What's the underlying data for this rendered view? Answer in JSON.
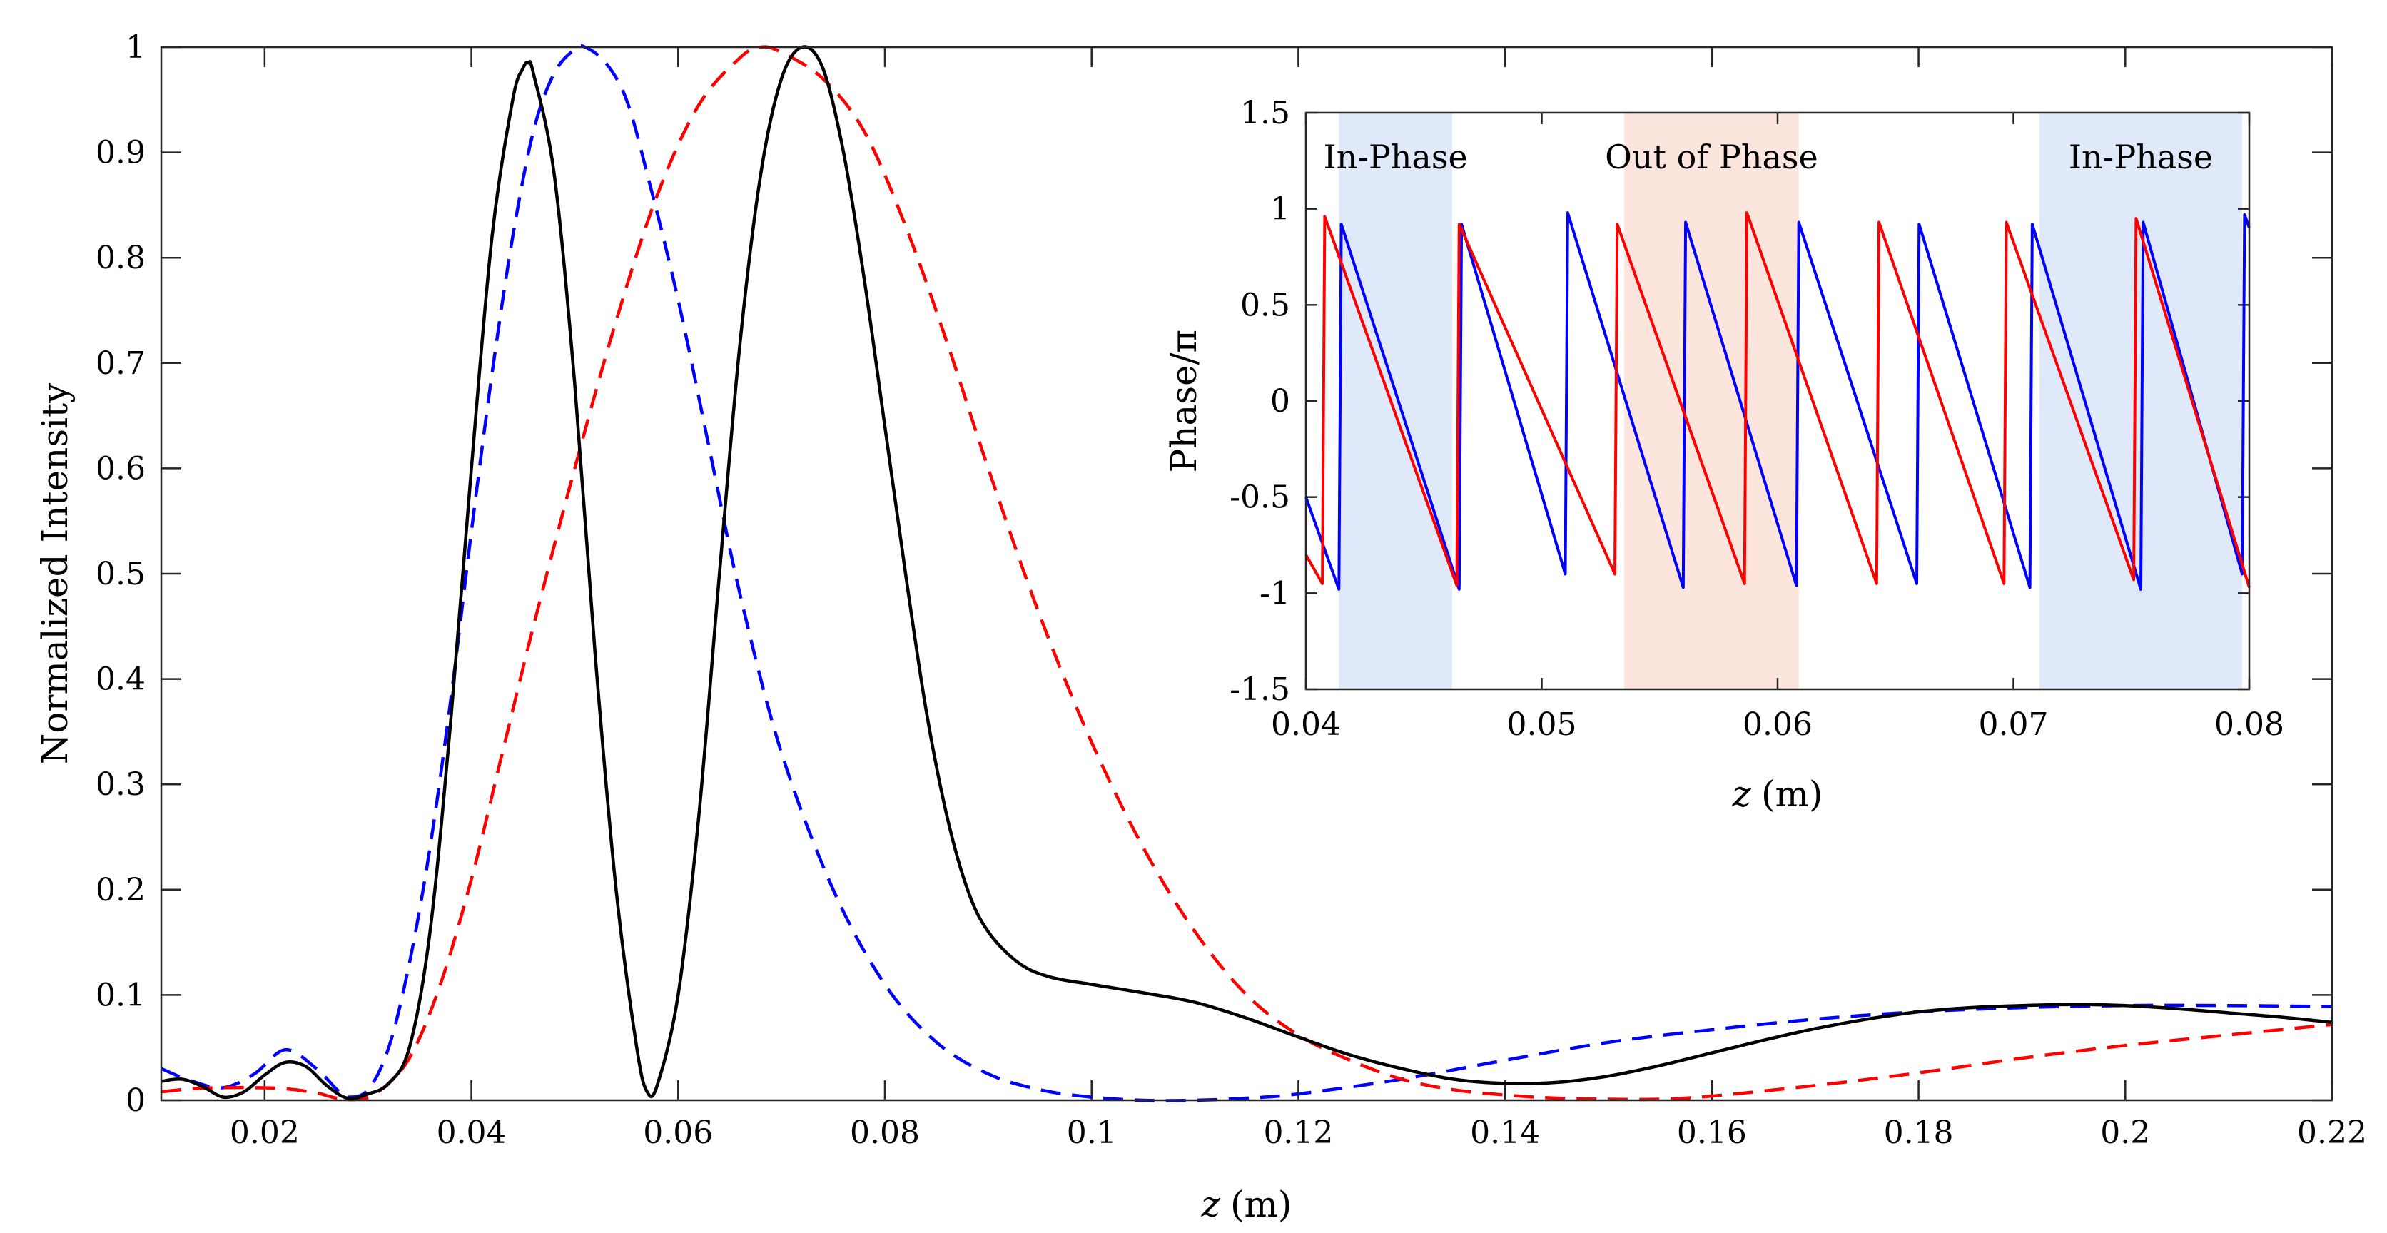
{
  "chart_data": [
    {
      "type": "line",
      "title": "",
      "xlabel_var": "z",
      "xlabel_unit": "(m)",
      "ylabel": "Normalized Intensity",
      "xlim": [
        0.01,
        0.22
      ],
      "ylim": [
        0,
        1
      ],
      "xticks": [
        0.02,
        0.04,
        0.06,
        0.08,
        0.1,
        0.12,
        0.14,
        0.16,
        0.18,
        0.2,
        0.22
      ],
      "xtick_labels": [
        "0.02",
        "0.04",
        "0.06",
        "0.08",
        "0.1",
        "0.12",
        "0.14",
        "0.16",
        "0.18",
        "0.2",
        "0.22"
      ],
      "yticks": [
        0,
        0.1,
        0.2,
        0.3,
        0.4,
        0.5,
        0.6,
        0.7,
        0.8,
        0.9,
        1
      ],
      "ytick_labels": [
        "0",
        "0.1",
        "0.2",
        "0.3",
        "0.4",
        "0.5",
        "0.6",
        "0.7",
        "0.8",
        "0.9",
        "1"
      ],
      "series": [
        {
          "name": "blue-dashed",
          "color": "#0000ff",
          "style": "dashed",
          "points": [
            [
              0.01,
              0.03
            ],
            [
              0.013,
              0.018
            ],
            [
              0.016,
              0.012
            ],
            [
              0.019,
              0.025
            ],
            [
              0.022,
              0.048
            ],
            [
              0.025,
              0.03
            ],
            [
              0.027,
              0.01
            ],
            [
              0.028,
              0.003
            ],
            [
              0.03,
              0.01
            ],
            [
              0.032,
              0.05
            ],
            [
              0.034,
              0.13
            ],
            [
              0.036,
              0.24
            ],
            [
              0.038,
              0.38
            ],
            [
              0.04,
              0.54
            ],
            [
              0.042,
              0.69
            ],
            [
              0.044,
              0.82
            ],
            [
              0.046,
              0.92
            ],
            [
              0.048,
              0.975
            ],
            [
              0.05,
              0.998
            ],
            [
              0.051,
              1.0
            ],
            [
              0.053,
              0.985
            ],
            [
              0.055,
              0.95
            ],
            [
              0.057,
              0.88
            ],
            [
              0.06,
              0.76
            ],
            [
              0.063,
              0.62
            ],
            [
              0.066,
              0.48
            ],
            [
              0.07,
              0.33
            ],
            [
              0.075,
              0.2
            ],
            [
              0.08,
              0.11
            ],
            [
              0.085,
              0.055
            ],
            [
              0.09,
              0.025
            ],
            [
              0.095,
              0.01
            ],
            [
              0.1,
              0.003
            ],
            [
              0.105,
              0.0
            ],
            [
              0.11,
              0.0
            ],
            [
              0.115,
              0.002
            ],
            [
              0.12,
              0.006
            ],
            [
              0.13,
              0.02
            ],
            [
              0.14,
              0.038
            ],
            [
              0.15,
              0.055
            ],
            [
              0.16,
              0.067
            ],
            [
              0.17,
              0.077
            ],
            [
              0.18,
              0.084
            ],
            [
              0.19,
              0.088
            ],
            [
              0.2,
              0.09
            ],
            [
              0.21,
              0.09
            ],
            [
              0.22,
              0.089
            ]
          ]
        },
        {
          "name": "red-dashed",
          "color": "#ff0000",
          "style": "dashed",
          "points": [
            [
              0.01,
              0.008
            ],
            [
              0.013,
              0.011
            ],
            [
              0.016,
              0.012
            ],
            [
              0.019,
              0.012
            ],
            [
              0.022,
              0.011
            ],
            [
              0.025,
              0.007
            ],
            [
              0.027,
              0.002
            ],
            [
              0.029,
              0.001
            ],
            [
              0.031,
              0.008
            ],
            [
              0.034,
              0.04
            ],
            [
              0.037,
              0.11
            ],
            [
              0.04,
              0.21
            ],
            [
              0.043,
              0.33
            ],
            [
              0.046,
              0.45
            ],
            [
              0.05,
              0.6
            ],
            [
              0.054,
              0.74
            ],
            [
              0.058,
              0.86
            ],
            [
              0.062,
              0.945
            ],
            [
              0.066,
              0.99
            ],
            [
              0.068,
              1.0
            ],
            [
              0.07,
              0.995
            ],
            [
              0.074,
              0.97
            ],
            [
              0.078,
              0.92
            ],
            [
              0.082,
              0.83
            ],
            [
              0.086,
              0.72
            ],
            [
              0.09,
              0.6
            ],
            [
              0.095,
              0.46
            ],
            [
              0.1,
              0.34
            ],
            [
              0.105,
              0.24
            ],
            [
              0.11,
              0.16
            ],
            [
              0.115,
              0.1
            ],
            [
              0.12,
              0.062
            ],
            [
              0.125,
              0.038
            ],
            [
              0.13,
              0.02
            ],
            [
              0.135,
              0.01
            ],
            [
              0.14,
              0.005
            ],
            [
              0.145,
              0.002
            ],
            [
              0.15,
              0.001
            ],
            [
              0.155,
              0.001
            ],
            [
              0.16,
              0.004
            ],
            [
              0.17,
              0.014
            ],
            [
              0.18,
              0.026
            ],
            [
              0.19,
              0.04
            ],
            [
              0.2,
              0.052
            ],
            [
              0.21,
              0.062
            ],
            [
              0.22,
              0.072
            ]
          ]
        },
        {
          "name": "black-solid",
          "color": "#000000",
          "style": "solid",
          "points": [
            [
              0.01,
              0.018
            ],
            [
              0.012,
              0.02
            ],
            [
              0.014,
              0.013
            ],
            [
              0.016,
              0.003
            ],
            [
              0.018,
              0.008
            ],
            [
              0.02,
              0.024
            ],
            [
              0.022,
              0.036
            ],
            [
              0.024,
              0.032
            ],
            [
              0.026,
              0.014
            ],
            [
              0.028,
              0.002
            ],
            [
              0.03,
              0.006
            ],
            [
              0.032,
              0.016
            ],
            [
              0.034,
              0.05
            ],
            [
              0.036,
              0.16
            ],
            [
              0.038,
              0.36
            ],
            [
              0.04,
              0.6
            ],
            [
              0.042,
              0.82
            ],
            [
              0.044,
              0.95
            ],
            [
              0.045,
              0.98
            ],
            [
              0.0455,
              0.985
            ],
            [
              0.046,
              0.975
            ],
            [
              0.048,
              0.88
            ],
            [
              0.05,
              0.68
            ],
            [
              0.052,
              0.42
            ],
            [
              0.054,
              0.2
            ],
            [
              0.056,
              0.05
            ],
            [
              0.057,
              0.008
            ],
            [
              0.058,
              0.015
            ],
            [
              0.06,
              0.1
            ],
            [
              0.062,
              0.27
            ],
            [
              0.064,
              0.5
            ],
            [
              0.066,
              0.72
            ],
            [
              0.068,
              0.88
            ],
            [
              0.07,
              0.97
            ],
            [
              0.072,
              1.0
            ],
            [
              0.074,
              0.98
            ],
            [
              0.076,
              0.9
            ],
            [
              0.078,
              0.78
            ],
            [
              0.08,
              0.64
            ],
            [
              0.082,
              0.5
            ],
            [
              0.084,
              0.37
            ],
            [
              0.086,
              0.27
            ],
            [
              0.088,
              0.2
            ],
            [
              0.09,
              0.16
            ],
            [
              0.093,
              0.13
            ],
            [
              0.096,
              0.117
            ],
            [
              0.1,
              0.11
            ],
            [
              0.105,
              0.102
            ],
            [
              0.11,
              0.093
            ],
            [
              0.115,
              0.078
            ],
            [
              0.12,
              0.06
            ],
            [
              0.125,
              0.043
            ],
            [
              0.13,
              0.03
            ],
            [
              0.135,
              0.02
            ],
            [
              0.14,
              0.016
            ],
            [
              0.145,
              0.017
            ],
            [
              0.15,
              0.023
            ],
            [
              0.155,
              0.033
            ],
            [
              0.16,
              0.045
            ],
            [
              0.165,
              0.057
            ],
            [
              0.17,
              0.068
            ],
            [
              0.175,
              0.077
            ],
            [
              0.18,
              0.084
            ],
            [
              0.185,
              0.088
            ],
            [
              0.19,
              0.09
            ],
            [
              0.195,
              0.091
            ],
            [
              0.2,
              0.09
            ],
            [
              0.205,
              0.087
            ],
            [
              0.21,
              0.083
            ],
            [
              0.215,
              0.079
            ],
            [
              0.22,
              0.074
            ]
          ]
        }
      ]
    },
    {
      "type": "line",
      "title": "",
      "xlabel_var": "z",
      "xlabel_unit": "(m)",
      "ylabel": "Phase/π",
      "xlim": [
        0.04,
        0.08
      ],
      "ylim": [
        -1.5,
        1.5
      ],
      "xticks": [
        0.04,
        0.05,
        0.06,
        0.07,
        0.08
      ],
      "xtick_labels": [
        "0.04",
        "0.05",
        "0.06",
        "0.07",
        "0.08"
      ],
      "yticks": [
        -1.5,
        -1,
        -0.5,
        0,
        0.5,
        1,
        1.5
      ],
      "ytick_labels": [
        "-1.5",
        "-1",
        "-0.5",
        "0",
        "0.5",
        "1",
        "1.5"
      ],
      "shaded_regions": [
        {
          "label": "In-Phase",
          "x_range": [
            0.0414,
            0.0462
          ],
          "color": "#dfe9f9"
        },
        {
          "label": "Out of Phase",
          "x_range": [
            0.0535,
            0.0609
          ],
          "color": "#fbe5dc"
        },
        {
          "label": "In-Phase",
          "x_range": [
            0.0711,
            0.0797
          ],
          "color": "#dfe9f9"
        }
      ],
      "series": [
        {
          "name": "blue-phase",
          "color": "#0000ff",
          "style": "solid",
          "points": [
            [
              0.04,
              -0.5
            ],
            [
              0.0414,
              -0.98
            ],
            [
              0.0415,
              0.92
            ],
            [
              0.0465,
              -0.98
            ],
            [
              0.0466,
              0.92
            ],
            [
              0.051,
              -0.9
            ],
            [
              0.0511,
              0.98
            ],
            [
              0.056,
              -0.97
            ],
            [
              0.0561,
              0.93
            ],
            [
              0.0608,
              -0.96
            ],
            [
              0.0609,
              0.93
            ],
            [
              0.0659,
              -0.95
            ],
            [
              0.066,
              0.92
            ],
            [
              0.0707,
              -0.97
            ],
            [
              0.0708,
              0.92
            ],
            [
              0.0754,
              -0.98
            ],
            [
              0.0755,
              0.93
            ],
            [
              0.0797,
              -0.9
            ],
            [
              0.0798,
              0.97
            ],
            [
              0.08,
              0.9
            ]
          ]
        },
        {
          "name": "red-phase",
          "color": "#ff0000",
          "style": "solid",
          "points": [
            [
              0.04,
              -0.8
            ],
            [
              0.0407,
              -0.95
            ],
            [
              0.0408,
              0.96
            ],
            [
              0.0464,
              -0.96
            ],
            [
              0.0465,
              0.92
            ],
            [
              0.0531,
              -0.9
            ],
            [
              0.0532,
              0.92
            ],
            [
              0.0586,
              -0.95
            ],
            [
              0.0587,
              0.98
            ],
            [
              0.0642,
              -0.95
            ],
            [
              0.0643,
              0.93
            ],
            [
              0.0696,
              -0.95
            ],
            [
              0.0697,
              0.93
            ],
            [
              0.0751,
              -0.93
            ],
            [
              0.0752,
              0.95
            ],
            [
              0.08,
              -0.97
            ]
          ]
        }
      ]
    }
  ]
}
